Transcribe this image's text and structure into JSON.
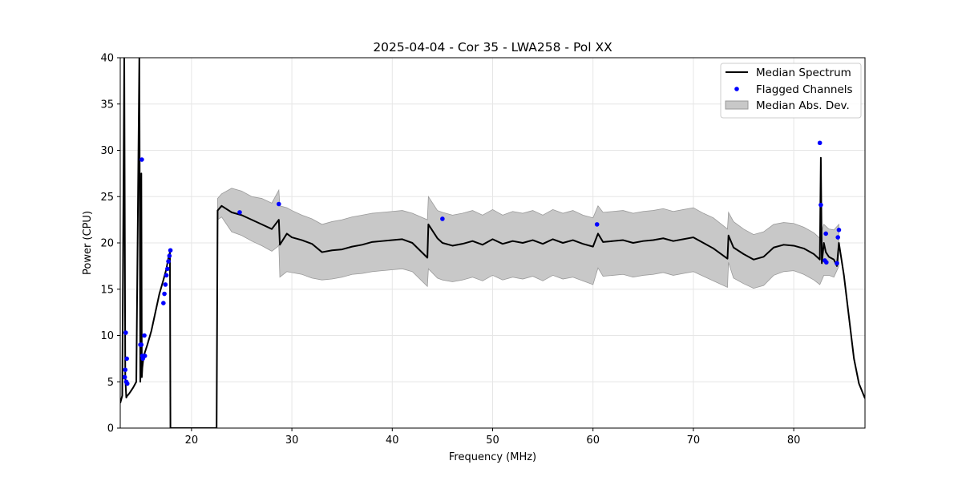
{
  "chart_data": {
    "type": "line",
    "title": "2025-04-04 - Cor 35 - LWA258 - Pol XX",
    "xlabel": "Frequency (MHz)",
    "ylabel": "Power (CPU)",
    "xlim": [
      12.9,
      87.1
    ],
    "ylim": [
      0,
      40
    ],
    "xticks": [
      20,
      30,
      40,
      50,
      60,
      70,
      80
    ],
    "yticks": [
      0,
      5,
      10,
      15,
      20,
      25,
      30,
      35,
      40
    ],
    "xtick_labels": [
      "20",
      "30",
      "40",
      "50",
      "60",
      "70",
      "80"
    ],
    "ytick_labels": [
      "0",
      "5",
      "10",
      "15",
      "20",
      "25",
      "30",
      "35",
      "40"
    ],
    "grid": true,
    "legend_position": "top-right",
    "legend": [
      "Median Spectrum",
      "Flagged Channels",
      "Median Abs. Dev."
    ],
    "colors": {
      "median": "#000000",
      "flagged": "#0000ff",
      "mad_fill": "#c8c8c8",
      "mad_edge": "#9a9a9a",
      "grid": "#e6e6e6"
    },
    "series": [
      {
        "name": "Median Spectrum",
        "x": [
          12.9,
          13.1,
          13.3,
          13.4,
          13.5,
          13.6,
          13.7,
          13.9,
          14.2,
          14.5,
          14.8,
          14.9,
          15.0,
          15.05,
          15.1,
          15.15,
          15.2,
          15.3,
          15.6,
          16.0,
          16.4,
          16.8,
          17.2,
          17.5,
          17.7,
          17.85,
          17.9,
          18.0,
          22.5,
          22.6,
          23.0,
          24.0,
          25.0,
          26.0,
          27.0,
          28.0,
          28.7,
          28.8,
          29.5,
          30.0,
          31.0,
          32.0,
          33.0,
          34.0,
          35.0,
          36.0,
          37.0,
          38.0,
          39.0,
          40.0,
          41.0,
          42.0,
          43.5,
          43.6,
          44.5,
          45.0,
          46.0,
          47.0,
          48.0,
          49.0,
          50.0,
          51.0,
          52.0,
          53.0,
          54.0,
          55.0,
          56.0,
          57.0,
          58.0,
          59.0,
          60.0,
          60.5,
          61.0,
          62.0,
          63.0,
          64.0,
          65.0,
          66.0,
          67.0,
          68.0,
          69.0,
          70.0,
          71.0,
          72.0,
          73.4,
          73.5,
          74.0,
          75.0,
          76.0,
          77.0,
          78.0,
          79.0,
          80.0,
          81.0,
          82.0,
          82.6,
          82.7,
          82.8,
          83.0,
          83.2,
          83.5,
          84.0,
          84.3,
          84.5,
          85.0,
          85.5,
          86.0,
          86.5,
          87.1
        ],
        "y": [
          2.7,
          3.5,
          40,
          5.5,
          3.3,
          3.5,
          3.6,
          3.9,
          4.4,
          5.0,
          40,
          5.0,
          27.5,
          5.5,
          6.5,
          7.0,
          7.5,
          8.0,
          9.0,
          10.5,
          12.5,
          14.5,
          16.0,
          17.2,
          18.4,
          19.0,
          0,
          0,
          0,
          23.5,
          24.0,
          23.3,
          23.0,
          22.5,
          22.0,
          21.5,
          22.5,
          19.8,
          21.0,
          20.6,
          20.3,
          19.9,
          19.0,
          19.2,
          19.3,
          19.6,
          19.8,
          20.1,
          20.2,
          20.3,
          20.4,
          20.0,
          18.4,
          22.0,
          20.5,
          20.0,
          19.7,
          19.9,
          20.2,
          19.8,
          20.4,
          19.9,
          20.2,
          20.0,
          20.3,
          19.9,
          20.4,
          20.0,
          20.3,
          19.9,
          19.6,
          21.0,
          20.1,
          20.2,
          20.3,
          20.0,
          20.2,
          20.3,
          20.5,
          20.2,
          20.4,
          20.6,
          20.0,
          19.4,
          18.3,
          20.8,
          19.5,
          18.8,
          18.2,
          18.5,
          19.5,
          19.8,
          19.7,
          19.4,
          18.8,
          18.2,
          29.2,
          17.8,
          20.0,
          19.0,
          18.5,
          18.2,
          17.5,
          20.0,
          16.5,
          12.0,
          7.5,
          4.8,
          3.2
        ]
      }
    ],
    "mad_band": {
      "name": "Median Abs. Dev.",
      "x": [
        22.6,
        23.0,
        24.0,
        25.0,
        26.0,
        27.0,
        28.0,
        28.6,
        28.7,
        28.8,
        29.5,
        30.0,
        31.0,
        32.0,
        33.0,
        34.0,
        35.0,
        36.0,
        37.0,
        38.0,
        39.0,
        40.0,
        41.0,
        42.0,
        43.5,
        43.6,
        44.5,
        45.0,
        46.0,
        47.0,
        48.0,
        49.0,
        50.0,
        51.0,
        52.0,
        53.0,
        54.0,
        55.0,
        56.0,
        57.0,
        58.0,
        59.0,
        60.0,
        60.5,
        61.0,
        62.0,
        63.0,
        64.0,
        65.0,
        66.0,
        67.0,
        68.0,
        69.0,
        70.0,
        71.0,
        72.0,
        73.4,
        73.5,
        74.0,
        75.0,
        76.0,
        77.0,
        78.0,
        79.0,
        80.0,
        81.0,
        82.0,
        82.6,
        83.0,
        83.5,
        84.0,
        84.5
      ],
      "upper": [
        24.8,
        25.3,
        25.9,
        25.6,
        25.0,
        24.8,
        24.3,
        25.5,
        25.7,
        24.0,
        23.8,
        23.5,
        23.0,
        22.6,
        22.0,
        22.3,
        22.5,
        22.8,
        23.0,
        23.2,
        23.3,
        23.4,
        23.5,
        23.2,
        22.5,
        25.0,
        23.5,
        23.3,
        23.0,
        23.2,
        23.5,
        23.0,
        23.6,
        23.0,
        23.4,
        23.2,
        23.5,
        23.0,
        23.6,
        23.2,
        23.5,
        23.0,
        22.7,
        24.0,
        23.3,
        23.4,
        23.5,
        23.2,
        23.4,
        23.5,
        23.7,
        23.4,
        23.6,
        23.8,
        23.2,
        22.7,
        21.5,
        23.3,
        22.3,
        21.5,
        20.9,
        21.2,
        22.0,
        22.2,
        22.1,
        21.7,
        21.1,
        20.5,
        22.0,
        21.5,
        21.4,
        22.0
      ],
      "lower": [
        22.5,
        22.8,
        21.2,
        20.8,
        20.2,
        19.7,
        19.1,
        19.6,
        19.8,
        16.3,
        16.9,
        16.8,
        16.6,
        16.2,
        16.0,
        16.1,
        16.3,
        16.6,
        16.7,
        16.9,
        17.0,
        17.1,
        17.2,
        16.9,
        15.3,
        17.2,
        16.2,
        16.0,
        15.8,
        16.0,
        16.3,
        15.9,
        16.5,
        16.0,
        16.3,
        16.1,
        16.4,
        15.9,
        16.5,
        16.1,
        16.3,
        15.9,
        15.5,
        17.3,
        16.4,
        16.5,
        16.6,
        16.3,
        16.5,
        16.6,
        16.8,
        16.5,
        16.7,
        16.9,
        16.4,
        15.9,
        15.2,
        17.9,
        16.2,
        15.6,
        15.1,
        15.4,
        16.5,
        16.9,
        17.0,
        16.6,
        16.0,
        15.5,
        16.5,
        16.5,
        16.3,
        17.5
      ]
    },
    "flagged_points": {
      "name": "Flagged Channels",
      "x": [
        13.35,
        13.4,
        13.45,
        13.5,
        13.55,
        13.6,
        14.9,
        15.0,
        15.05,
        15.1,
        15.15,
        15.2,
        15.3,
        15.35,
        17.2,
        17.3,
        17.4,
        17.5,
        17.6,
        17.7,
        17.8,
        17.9,
        24.8,
        28.7,
        45.0,
        60.4,
        82.6,
        82.7,
        83.1,
        83.2,
        83.25,
        84.3,
        84.4,
        84.5
      ],
      "y": [
        5.5,
        6.3,
        10.3,
        5.0,
        7.5,
        4.8,
        9.0,
        9.0,
        29.0,
        7.8,
        7.5,
        7.7,
        10.0,
        7.8,
        13.5,
        14.5,
        15.5,
        16.5,
        17.2,
        18.0,
        18.6,
        19.2,
        23.3,
        24.2,
        22.6,
        22.0,
        30.8,
        24.1,
        18.1,
        21.0,
        17.9,
        17.8,
        20.6,
        21.4
      ]
    }
  }
}
